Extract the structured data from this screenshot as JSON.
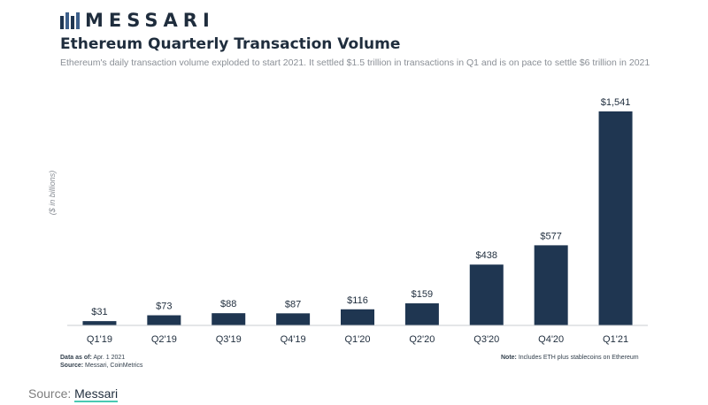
{
  "brand": {
    "name": "MESSARI",
    "logo_icon": "messari-logo-icon"
  },
  "header": {
    "title": "Ethereum Quarterly Transaction Volume",
    "subtitle": "Ethereum's daily transaction volume exploded to start 2021. It settled $1.5 trillion in transactions in Q1 and is on pace to settle $6 trillion in 2021"
  },
  "chart_data": {
    "type": "bar",
    "title": "Ethereum Quarterly Transaction Volume",
    "categories": [
      "Q1'19",
      "Q2'19",
      "Q3'19",
      "Q4'19",
      "Q1'20",
      "Q2'20",
      "Q3'20",
      "Q4'20",
      "Q1'21"
    ],
    "values": [
      31,
      73,
      88,
      87,
      116,
      159,
      438,
      577,
      1541
    ],
    "value_labels": [
      "$31",
      "$73",
      "$88",
      "$87",
      "$116",
      "$159",
      "$438",
      "$577",
      "$1,541"
    ],
    "xlabel": "",
    "ylabel": "($ in billions)",
    "ylim": [
      0,
      1700
    ],
    "grid": false,
    "bar_color": "#1f3651"
  },
  "notes": {
    "data_as_of_label": "Data as of:",
    "data_as_of_value": "Apr. 1 2021",
    "source_label": "Source:",
    "source_value": "Messari, CoinMetrics",
    "note_label": "Note:",
    "note_value": "Includes ETH plus stablecoins on Ethereum"
  },
  "footer": {
    "source_prefix": "Source:",
    "source_link": "Messari"
  },
  "colors": {
    "bar": "#1f3651",
    "link_underline": "#49c9b3"
  }
}
